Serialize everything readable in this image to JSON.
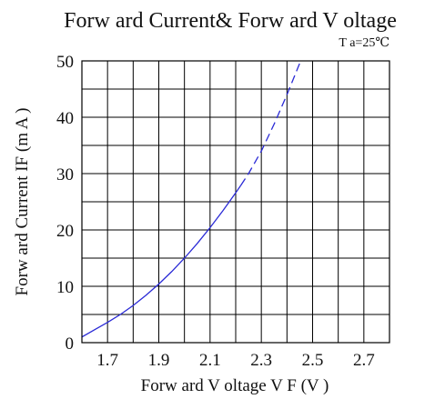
{
  "chart_data": {
    "type": "line",
    "title": "Forw ard Current& Forw ard V oltage",
    "subtitle": "T a=25℃",
    "xlabel": "Forw ard V oltage  V F (V )",
    "ylabel": "Forw ard Current IF (m A )",
    "xlim": [
      1.6,
      2.8
    ],
    "ylim": [
      0,
      50
    ],
    "x_ticks": [
      1.7,
      1.9,
      2.1,
      2.3,
      2.5,
      2.7
    ],
    "x_tick_labels": [
      "1.7",
      "1.9",
      "2.1",
      "2.3",
      "2.5",
      "2.7"
    ],
    "y_ticks": [
      0,
      10,
      20,
      30,
      40,
      50
    ],
    "y_tick_labels": [
      "0",
      "10",
      "20",
      "30",
      "40",
      "50"
    ],
    "grid": true,
    "colors": {
      "curve": "#2a2ad6",
      "grid": "#000000"
    },
    "series": [
      {
        "style": "solid",
        "x": [
          1.6,
          1.65,
          1.7,
          1.75,
          1.8,
          1.85,
          1.9,
          1.95,
          2.0,
          2.05,
          2.1,
          2.15,
          2.2,
          2.22
        ],
        "y": [
          1.0,
          2.3,
          3.6,
          5.0,
          6.6,
          8.4,
          10.4,
          12.6,
          15.0,
          17.6,
          20.4,
          23.4,
          26.6,
          27.9
        ]
      },
      {
        "style": "dashed",
        "x": [
          2.22,
          2.25,
          2.3,
          2.35,
          2.4,
          2.45,
          2.48
        ],
        "y": [
          27.9,
          30.0,
          34.0,
          38.8,
          44.0,
          49.6,
          52.5
        ]
      }
    ]
  }
}
